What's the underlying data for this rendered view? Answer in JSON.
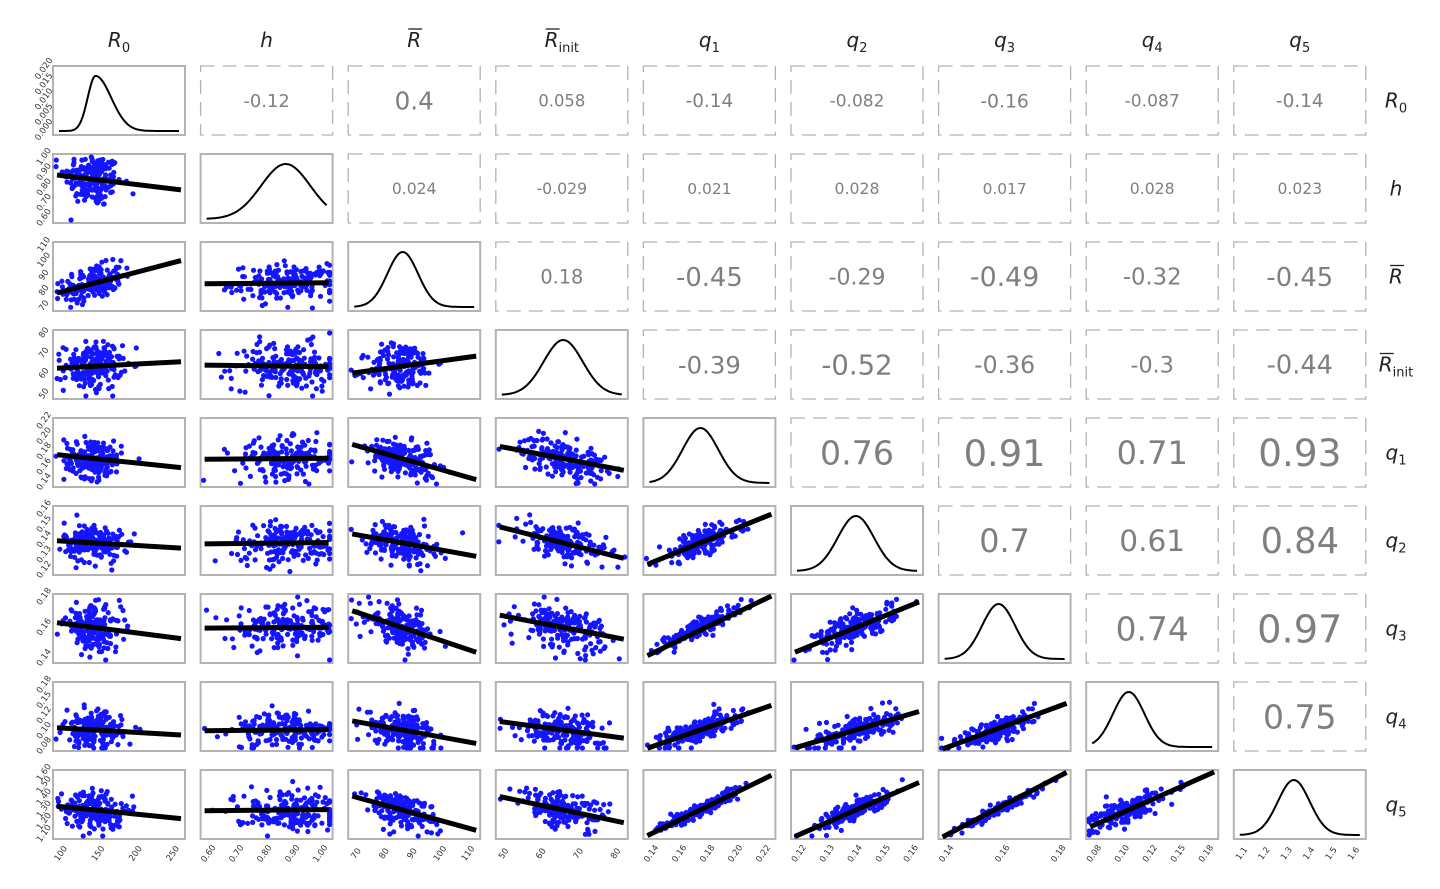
{
  "chart_data": {
    "type": "scatter",
    "variables": [
      {
        "base": "R",
        "sub": "0",
        "bar": false
      },
      {
        "base": "h",
        "sub": "",
        "bar": false
      },
      {
        "base": "R",
        "sub": "",
        "bar": true
      },
      {
        "base": "R",
        "sub": "init",
        "bar": true
      },
      {
        "base": "q",
        "sub": "1",
        "bar": false
      },
      {
        "base": "q",
        "sub": "2",
        "bar": false
      },
      {
        "base": "q",
        "sub": "3",
        "bar": false
      },
      {
        "base": "q",
        "sub": "4",
        "bar": false
      },
      {
        "base": "q",
        "sub": "5",
        "bar": false
      }
    ],
    "x_ticks": [
      [
        "100",
        "150",
        "200",
        "250"
      ],
      [
        "0.60",
        "0.70",
        "0.80",
        "0.90",
        "1.00"
      ],
      [
        "70",
        "80",
        "90",
        "100",
        "110"
      ],
      [
        "50",
        "60",
        "70",
        "80"
      ],
      [
        "0.14",
        "0.16",
        "0.18",
        "0.20",
        "0.22"
      ],
      [
        "0.12",
        "0.13",
        "0.14",
        "0.15",
        "0.16"
      ],
      [
        "0.14",
        "0.16",
        "0.18"
      ],
      [
        "0.08",
        "0.10",
        "0.12",
        "0.15",
        "0.18"
      ],
      [
        "1.1",
        "1.2",
        "1.3",
        "1.4",
        "1.5",
        "1.6"
      ]
    ],
    "x_ranges": [
      [
        40,
        270
      ],
      [
        0.56,
        1.0
      ],
      [
        66,
        113
      ],
      [
        44,
        87
      ],
      [
        0.135,
        0.222
      ],
      [
        0.112,
        0.165
      ],
      [
        0.125,
        0.205
      ],
      [
        0.075,
        0.19
      ],
      [
        1.05,
        1.65
      ]
    ],
    "y_ticks": [
      [
        "0.000",
        "0.005",
        "0.010",
        "0.015",
        "0.020"
      ],
      [
        "0.60",
        "0.70",
        "0.80",
        "0.90",
        "1.00"
      ],
      [
        "70",
        "80",
        "90",
        "100",
        "110"
      ],
      [
        "50",
        "60",
        "70",
        "80"
      ],
      [
        "0.14",
        "0.16",
        "0.18",
        "0.20",
        "0.22"
      ],
      [
        "0.12",
        "0.13",
        "0.14",
        "0.15",
        "0.16"
      ],
      [
        "0.14",
        "0.16",
        "0.18"
      ],
      [
        "0.08",
        "0.10",
        "0.12",
        "0.15",
        "0.18"
      ],
      [
        "1.10",
        "1.20",
        "1.30",
        "1.40",
        "1.50",
        "1.60"
      ]
    ],
    "y_ranges": [
      [
        0,
        0.021
      ],
      [
        0.56,
        1.02
      ],
      [
        66,
        113
      ],
      [
        47,
        87
      ],
      [
        0.135,
        0.225
      ],
      [
        0.112,
        0.168
      ],
      [
        0.125,
        0.195
      ],
      [
        0.075,
        0.19
      ],
      [
        1.08,
        1.65
      ]
    ],
    "correlations": [
      {
        "row": 0,
        "col": 1,
        "value": "-0.12"
      },
      {
        "row": 0,
        "col": 2,
        "value": "0.4"
      },
      {
        "row": 0,
        "col": 3,
        "value": "0.058"
      },
      {
        "row": 0,
        "col": 4,
        "value": "-0.14"
      },
      {
        "row": 0,
        "col": 5,
        "value": "-0.082"
      },
      {
        "row": 0,
        "col": 6,
        "value": "-0.16"
      },
      {
        "row": 0,
        "col": 7,
        "value": "-0.087"
      },
      {
        "row": 0,
        "col": 8,
        "value": "-0.14"
      },
      {
        "row": 1,
        "col": 2,
        "value": "0.024"
      },
      {
        "row": 1,
        "col": 3,
        "value": "-0.029"
      },
      {
        "row": 1,
        "col": 4,
        "value": "0.021"
      },
      {
        "row": 1,
        "col": 5,
        "value": "0.028"
      },
      {
        "row": 1,
        "col": 6,
        "value": "0.017"
      },
      {
        "row": 1,
        "col": 7,
        "value": "0.028"
      },
      {
        "row": 1,
        "col": 8,
        "value": "0.023"
      },
      {
        "row": 2,
        "col": 3,
        "value": "0.18"
      },
      {
        "row": 2,
        "col": 4,
        "value": "-0.45"
      },
      {
        "row": 2,
        "col": 5,
        "value": "-0.29"
      },
      {
        "row": 2,
        "col": 6,
        "value": "-0.49"
      },
      {
        "row": 2,
        "col": 7,
        "value": "-0.32"
      },
      {
        "row": 2,
        "col": 8,
        "value": "-0.45"
      },
      {
        "row": 3,
        "col": 4,
        "value": "-0.39"
      },
      {
        "row": 3,
        "col": 5,
        "value": "-0.52"
      },
      {
        "row": 3,
        "col": 6,
        "value": "-0.36"
      },
      {
        "row": 3,
        "col": 7,
        "value": "-0.3"
      },
      {
        "row": 3,
        "col": 8,
        "value": "-0.44"
      },
      {
        "row": 4,
        "col": 5,
        "value": "0.76"
      },
      {
        "row": 4,
        "col": 6,
        "value": "0.91"
      },
      {
        "row": 4,
        "col": 7,
        "value": "0.71"
      },
      {
        "row": 4,
        "col": 8,
        "value": "0.93"
      },
      {
        "row": 5,
        "col": 6,
        "value": "0.7"
      },
      {
        "row": 5,
        "col": 7,
        "value": "0.61"
      },
      {
        "row": 5,
        "col": 8,
        "value": "0.84"
      },
      {
        "row": 6,
        "col": 7,
        "value": "0.74"
      },
      {
        "row": 6,
        "col": 8,
        "value": "0.97"
      },
      {
        "row": 7,
        "col": 8,
        "value": "0.75"
      }
    ],
    "density_peaks": [
      {
        "var": 0,
        "mode": 110,
        "mode_density": 0.0205
      },
      {
        "var": 1,
        "mode": 0.9
      },
      {
        "var": 2,
        "mode": 84
      },
      {
        "var": 3,
        "mode": 66
      },
      {
        "var": 4,
        "mode": 0.17
      },
      {
        "var": 5,
        "mode": 0.138
      },
      {
        "var": 6,
        "mode": 0.16
      },
      {
        "var": 7,
        "mode": 0.105
      },
      {
        "var": 8,
        "mode": 1.32
      }
    ],
    "point_color": "#1515ff",
    "line_color": "#000000",
    "text_color": "#7f7f7f",
    "border_color": "#b3b3b3"
  }
}
